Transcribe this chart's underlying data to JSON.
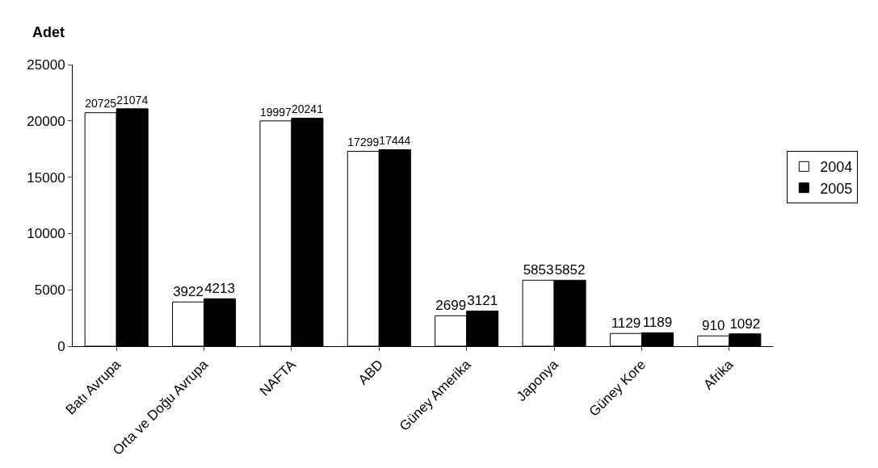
{
  "chart_data": {
    "type": "bar",
    "ylabel": "Adet",
    "categories": [
      "Batı Avrupa",
      "Orta ve Doğu Avrupa",
      "NAFTA",
      "ABD",
      "Güney Amerika",
      "Japonya",
      "Güney Kore",
      "Afrika"
    ],
    "series": [
      {
        "name": "2004",
        "color": "#ffffff",
        "values": [
          20725,
          3922,
          19997,
          17299,
          2699,
          5853,
          1129,
          910
        ]
      },
      {
        "name": "2005",
        "color": "#000000",
        "values": [
          21074,
          4213,
          20241,
          17444,
          3121,
          5852,
          1189,
          1092
        ]
      }
    ],
    "ylim": [
      0,
      25000
    ],
    "yticks": [
      0,
      5000,
      10000,
      15000,
      20000,
      25000
    ],
    "grid": false,
    "legend": "right",
    "data_labels": true
  }
}
